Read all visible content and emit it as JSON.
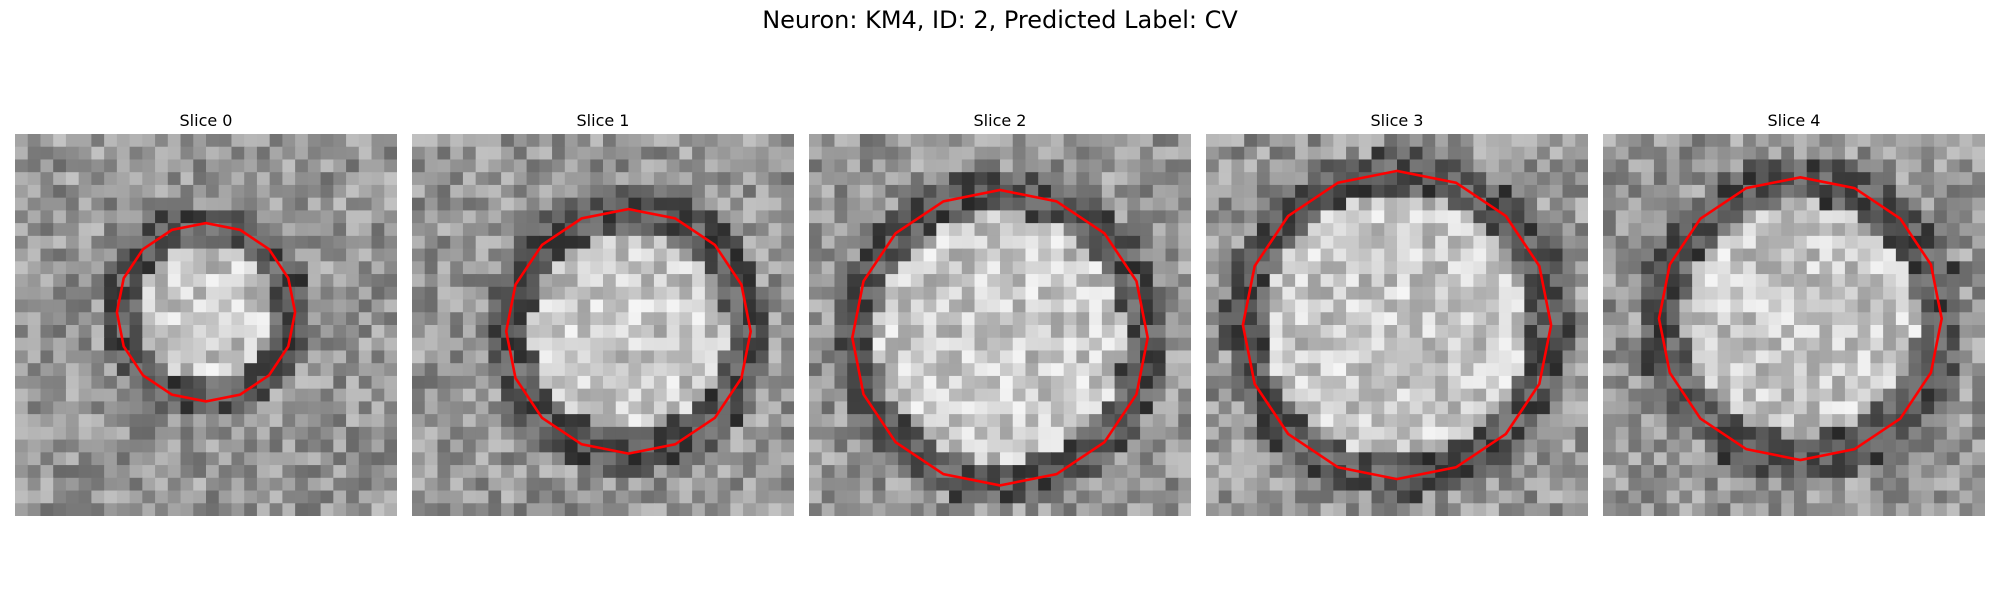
{
  "figure": {
    "title": "Neuron: KM4, ID: 2, Predicted Label: CV"
  },
  "outline_color": "#ff0000",
  "slices": [
    {
      "label": "Slice 0"
    },
    {
      "label": "Slice 1"
    },
    {
      "label": "Slice 2"
    },
    {
      "label": "Slice 3"
    },
    {
      "label": "Slice 4"
    }
  ]
}
